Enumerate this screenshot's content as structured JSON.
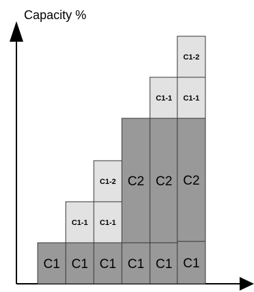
{
  "axis": {
    "y_label": "Capacity %"
  },
  "columns": [
    {
      "stack": [
        "C1"
      ]
    },
    {
      "stack": [
        "C1",
        "C1-1"
      ]
    },
    {
      "stack": [
        "C1",
        "C1-1",
        "C1-2"
      ]
    },
    {
      "stack": [
        "C1",
        "C2"
      ]
    },
    {
      "stack": [
        "C1",
        "C2",
        "C1-1"
      ]
    },
    {
      "stack": [
        "C1",
        "C2",
        "C1-1",
        "C1-2"
      ]
    }
  ],
  "colors": {
    "dark_block": "#999999",
    "light_block": "#e2e2e2",
    "border": "#333333",
    "axis": "#000000"
  }
}
